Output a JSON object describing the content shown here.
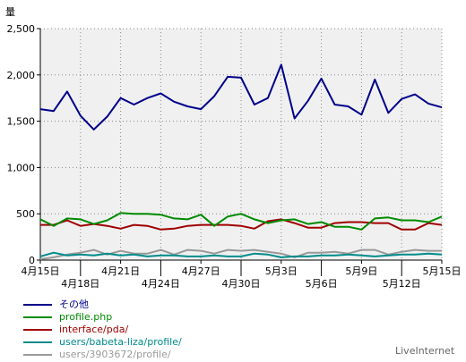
{
  "chart_data": {
    "type": "line",
    "title": "",
    "ylabel": "量",
    "xlabel": "",
    "ylim": [
      0,
      2500
    ],
    "yticks": [
      0,
      500,
      1000,
      1500,
      2000,
      2500
    ],
    "ytick_labels": [
      "0",
      "500",
      "1,000",
      "1,500",
      "2,000",
      "2,500"
    ],
    "grid": true,
    "legend_position": "bottom-left",
    "x": [
      "4月15日",
      "4月16日",
      "4月17日",
      "4月18日",
      "4月19日",
      "4月20日",
      "4月21日",
      "4月22日",
      "4月23日",
      "4月24日",
      "4月25日",
      "4月26日",
      "4月27日",
      "4月28日",
      "4月29日",
      "4月30日",
      "5月1日",
      "5月2日",
      "5月3日",
      "5月4日",
      "5月5日",
      "5月6日",
      "5月7日",
      "5月8日",
      "5月9日",
      "5月10日",
      "5月11日",
      "5月12日",
      "5月13日",
      "5月14日",
      "5月15日"
    ],
    "x_tick_labels": [
      {
        "index": 0,
        "label": "4月15日",
        "row": 0
      },
      {
        "index": 3,
        "label": "4月18日",
        "row": 1
      },
      {
        "index": 6,
        "label": "4月21日",
        "row": 0
      },
      {
        "index": 9,
        "label": "4月24日",
        "row": 1
      },
      {
        "index": 12,
        "label": "4月27日",
        "row": 0
      },
      {
        "index": 15,
        "label": "4月30日",
        "row": 1
      },
      {
        "index": 18,
        "label": "5月3日",
        "row": 0
      },
      {
        "index": 21,
        "label": "5月6日",
        "row": 1
      },
      {
        "index": 24,
        "label": "5月9日",
        "row": 0
      },
      {
        "index": 27,
        "label": "5月12日",
        "row": 1
      },
      {
        "index": 30,
        "label": "5月15日",
        "row": 0
      }
    ],
    "series": [
      {
        "name": "その他",
        "color": "#00008b",
        "values": [
          1630,
          1610,
          1820,
          1560,
          1410,
          1550,
          1750,
          1680,
          1750,
          1800,
          1710,
          1660,
          1630,
          1770,
          1980,
          1970,
          1680,
          1750,
          2110,
          1530,
          1720,
          1960,
          1680,
          1660,
          1570,
          1950,
          1590,
          1740,
          1790,
          1690,
          1650
        ]
      },
      {
        "name": "profile.php",
        "color": "#008b00",
        "values": [
          440,
          370,
          450,
          440,
          390,
          430,
          510,
          500,
          500,
          490,
          450,
          440,
          490,
          370,
          470,
          500,
          440,
          400,
          430,
          440,
          390,
          410,
          360,
          360,
          330,
          450,
          460,
          430,
          430,
          410,
          470
        ]
      },
      {
        "name": "interface/pda/",
        "color": "#a00000",
        "values": [
          380,
          380,
          430,
          370,
          390,
          370,
          340,
          380,
          370,
          330,
          340,
          370,
          380,
          380,
          380,
          370,
          340,
          420,
          440,
          400,
          350,
          350,
          400,
          410,
          410,
          400,
          400,
          330,
          330,
          400,
          380
        ]
      },
      {
        "name": "users/babeta-liza/profile/",
        "color": "#008b8b",
        "values": [
          40,
          80,
          50,
          60,
          50,
          70,
          50,
          60,
          40,
          50,
          50,
          40,
          40,
          50,
          40,
          40,
          70,
          60,
          30,
          40,
          40,
          50,
          50,
          60,
          50,
          40,
          50,
          60,
          60,
          70,
          60
        ]
      },
      {
        "name": "users/3903672/profile/",
        "color": "#999999",
        "values": [
          10,
          30,
          60,
          80,
          110,
          60,
          100,
          70,
          70,
          110,
          60,
          110,
          100,
          70,
          110,
          100,
          110,
          90,
          70,
          30,
          80,
          80,
          90,
          70,
          110,
          110,
          60,
          90,
          110,
          100,
          100
        ]
      }
    ]
  },
  "credit": "LiveInternet"
}
